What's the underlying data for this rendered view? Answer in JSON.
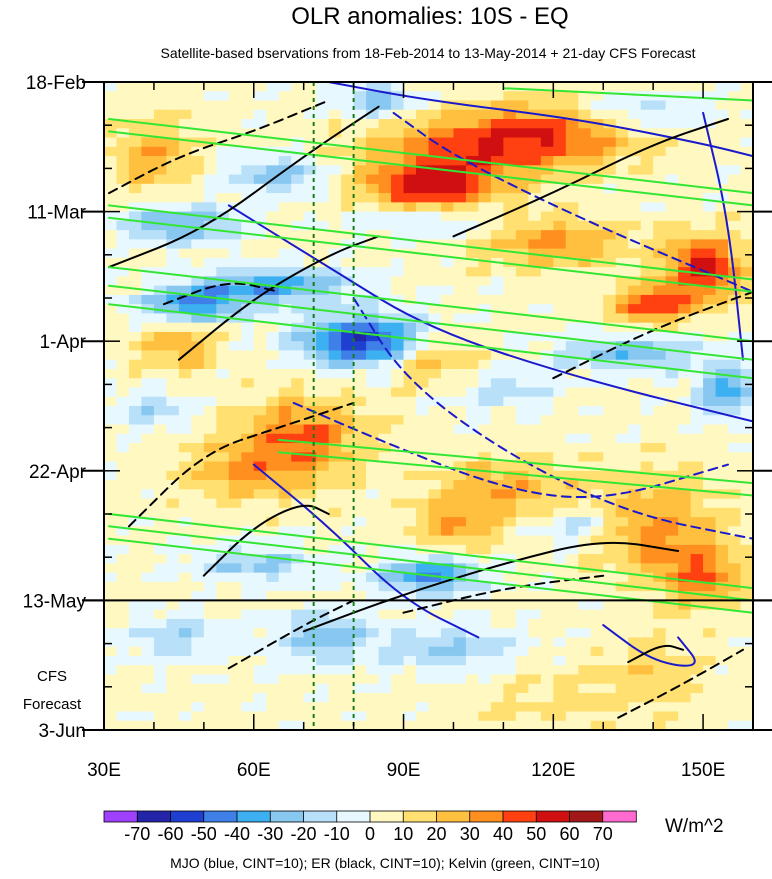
{
  "chart_data": {
    "type": "heatmap",
    "title": "OLR anomalies: 10S - EQ",
    "subtitle": "Satellite-based bservations from 18-Feb-2014 to 13-May-2014 + 21-day CFS Forecast",
    "x_axis": {
      "range": [
        30,
        160
      ],
      "ticks": [
        30,
        60,
        90,
        120,
        150
      ],
      "tick_labels": [
        "30E",
        "60E",
        "90E",
        "120E",
        "150E"
      ],
      "minor_step": 10
    },
    "y_axis": {
      "range_days": [
        0,
        105
      ],
      "direction": "time increases downward",
      "ticks_days": [
        0,
        21,
        42,
        63,
        84,
        105
      ],
      "tick_labels": [
        "18-Feb",
        "11-Mar",
        "1-Apr",
        "22-Apr",
        "13-May",
        "3-Jun"
      ],
      "minor_step_days": 7
    },
    "forecast_boundary": {
      "day": 84,
      "label": "13-May"
    },
    "forecast_label": [
      "CFS",
      "Forecast"
    ],
    "reference_lines_lon": [
      72,
      80
    ],
    "colorbar": {
      "unit": "W/m^2",
      "levels": [
        -70,
        -60,
        -50,
        -40,
        -30,
        -20,
        -10,
        0,
        10,
        20,
        30,
        40,
        50,
        60,
        70
      ],
      "tick_labels": [
        "-70",
        "-60",
        "-50",
        "-40",
        "-30",
        "-20",
        "-10",
        "0",
        "10",
        "20",
        "30",
        "40",
        "50",
        "60",
        "70"
      ],
      "colors": [
        "#a040ff",
        "#2424a8",
        "#1e3fd0",
        "#3f7fe8",
        "#3cb0f0",
        "#88c8f0",
        "#b8e0f8",
        "#e8f8ff",
        "#fff8c0",
        "#ffe070",
        "#ffc040",
        "#ff9020",
        "#ff4010",
        "#d01010",
        "#a01818",
        "#ff6ad0"
      ]
    },
    "field": {
      "background": 3,
      "features": [
        {
          "lon": 100,
          "day": 12,
          "rx": 20,
          "ry": 6,
          "v": 35
        },
        {
          "lon": 120,
          "day": 8,
          "rx": 18,
          "ry": 5,
          "v": 40
        },
        {
          "lon": 95,
          "day": 18,
          "rx": 12,
          "ry": 4,
          "v": 45
        },
        {
          "lon": 120,
          "day": 26,
          "rx": 15,
          "ry": 4,
          "v": 30
        },
        {
          "lon": 150,
          "day": 30,
          "rx": 8,
          "ry": 5,
          "v": 50
        },
        {
          "lon": 140,
          "day": 36,
          "rx": 8,
          "ry": 3,
          "v": 45
        },
        {
          "lon": 40,
          "day": 12,
          "rx": 8,
          "ry": 6,
          "v": 25
        },
        {
          "lon": 70,
          "day": 57,
          "rx": 12,
          "ry": 6,
          "v": 35
        },
        {
          "lon": 45,
          "day": 43,
          "rx": 8,
          "ry": 4,
          "v": 25
        },
        {
          "lon": 95,
          "day": 45,
          "rx": 10,
          "ry": 4,
          "v": 25
        },
        {
          "lon": 60,
          "day": 63,
          "rx": 14,
          "ry": 5,
          "v": 25
        },
        {
          "lon": 110,
          "day": 66,
          "rx": 14,
          "ry": 5,
          "v": 25
        },
        {
          "lon": 140,
          "day": 72,
          "rx": 12,
          "ry": 8,
          "v": 30
        },
        {
          "lon": 150,
          "day": 80,
          "rx": 8,
          "ry": 5,
          "v": 35
        },
        {
          "lon": 100,
          "day": 72,
          "rx": 8,
          "ry": 4,
          "v": 25
        },
        {
          "lon": 65,
          "day": 15,
          "rx": 10,
          "ry": 3,
          "v": -30
        },
        {
          "lon": 85,
          "day": 3,
          "rx": 8,
          "ry": 3,
          "v": -30
        },
        {
          "lon": 135,
          "day": 5,
          "rx": 15,
          "ry": 3,
          "v": -25
        },
        {
          "lon": 45,
          "day": 23,
          "rx": 12,
          "ry": 3,
          "v": -35
        },
        {
          "lon": 95,
          "day": 22,
          "rx": 15,
          "ry": 3,
          "v": -25
        },
        {
          "lon": 65,
          "day": 33,
          "rx": 15,
          "ry": 3,
          "v": -40
        },
        {
          "lon": 48,
          "day": 36,
          "rx": 10,
          "ry": 3,
          "v": -45
        },
        {
          "lon": 82,
          "day": 42,
          "rx": 12,
          "ry": 4,
          "v": -65
        },
        {
          "lon": 135,
          "day": 44,
          "rx": 15,
          "ry": 3,
          "v": -30
        },
        {
          "lon": 155,
          "day": 50,
          "rx": 6,
          "ry": 4,
          "v": -40
        },
        {
          "lon": 110,
          "day": 50,
          "rx": 10,
          "ry": 3,
          "v": -20
        },
        {
          "lon": 40,
          "day": 53,
          "rx": 8,
          "ry": 3,
          "v": -20
        },
        {
          "lon": 95,
          "day": 80,
          "rx": 10,
          "ry": 3,
          "v": -45
        },
        {
          "lon": 60,
          "day": 78,
          "rx": 12,
          "ry": 3,
          "v": -25
        },
        {
          "lon": 75,
          "day": 90,
          "rx": 10,
          "ry": 4,
          "v": -30
        },
        {
          "lon": 100,
          "day": 92,
          "rx": 12,
          "ry": 4,
          "v": -25
        },
        {
          "lon": 125,
          "day": 72,
          "rx": 8,
          "ry": 3,
          "v": -20
        },
        {
          "lon": 45,
          "day": 90,
          "rx": 10,
          "ry": 4,
          "v": -20
        },
        {
          "lon": 140,
          "day": 95,
          "rx": 10,
          "ry": 6,
          "v": 12
        },
        {
          "lon": 120,
          "day": 100,
          "rx": 20,
          "ry": 5,
          "v": 10
        }
      ]
    },
    "contour_legend": "MJO (blue, CINT=10); ER (black, CINT=10); Kelvin (green, CINT=10)",
    "contour_series": [
      {
        "name": "MJO",
        "color": "#1a1acc",
        "paths": [
          {
            "dashed": false,
            "points": [
              [
                75,
                0
              ],
              [
                95,
                3
              ],
              [
                125,
                6
              ],
              [
                150,
                10
              ],
              [
                160,
                12
              ]
            ]
          },
          {
            "dashed": false,
            "points": [
              [
                55,
                20
              ],
              [
                75,
                30
              ],
              [
                95,
                40
              ],
              [
                125,
                48
              ],
              [
                160,
                55
              ]
            ]
          },
          {
            "dashed": true,
            "points": [
              [
                88,
                5
              ],
              [
                100,
                12
              ],
              [
                125,
                22
              ],
              [
                160,
                34
              ]
            ]
          },
          {
            "dashed": true,
            "points": [
              [
                80,
                35
              ],
              [
                90,
                48
              ],
              [
                110,
                60
              ],
              [
                135,
                70
              ],
              [
                160,
                74
              ]
            ]
          },
          {
            "dashed": false,
            "points": [
              [
                60,
                62
              ],
              [
                75,
                72
              ],
              [
                90,
                84
              ],
              [
                105,
                90
              ]
            ]
          },
          {
            "dashed": true,
            "points": [
              [
                68,
                52
              ],
              [
                85,
                58
              ],
              [
                110,
                66
              ],
              [
                130,
                68
              ],
              [
                155,
                62
              ]
            ]
          },
          {
            "dashed": false,
            "points": [
              [
                130,
                88
              ],
              [
                140,
                94
              ],
              [
                150,
                95
              ],
              [
                145,
                90
              ]
            ]
          },
          {
            "dashed": false,
            "points": [
              [
                150,
                5
              ],
              [
                155,
                22
              ],
              [
                158,
                45
              ]
            ]
          }
        ]
      },
      {
        "name": "ER",
        "color": "#000000",
        "paths": [
          {
            "dashed": false,
            "points": [
              [
                31,
                30
              ],
              [
                50,
                24
              ],
              [
                70,
                12
              ],
              [
                85,
                4
              ]
            ]
          },
          {
            "dashed": false,
            "points": [
              [
                45,
                45
              ],
              [
                60,
                35
              ],
              [
                75,
                28
              ],
              [
                85,
                25
              ]
            ]
          },
          {
            "dashed": false,
            "points": [
              [
                50,
                80
              ],
              [
                60,
                72
              ],
              [
                70,
                68
              ],
              [
                75,
                70
              ]
            ]
          },
          {
            "dashed": false,
            "points": [
              [
                100,
                25
              ],
              [
                120,
                18
              ],
              [
                140,
                10
              ],
              [
                155,
                6
              ]
            ]
          },
          {
            "dashed": false,
            "points": [
              [
                70,
                89
              ],
              [
                90,
                83
              ],
              [
                110,
                78
              ],
              [
                130,
                74
              ],
              [
                145,
                76
              ]
            ]
          },
          {
            "dashed": false,
            "points": [
              [
                135,
                94
              ],
              [
                142,
                91
              ],
              [
                146,
                92
              ]
            ]
          },
          {
            "dashed": true,
            "points": [
              [
                31,
                18
              ],
              [
                45,
                12
              ],
              [
                60,
                8
              ],
              [
                75,
                3
              ]
            ]
          },
          {
            "dashed": true,
            "points": [
              [
                35,
                72
              ],
              [
                50,
                60
              ],
              [
                65,
                56
              ],
              [
                80,
                52
              ]
            ]
          },
          {
            "dashed": true,
            "points": [
              [
                55,
                95
              ],
              [
                70,
                88
              ],
              [
                80,
                84
              ]
            ]
          },
          {
            "dashed": true,
            "points": [
              [
                120,
                48
              ],
              [
                140,
                40
              ],
              [
                160,
                34
              ]
            ]
          },
          {
            "dashed": true,
            "points": [
              [
                90,
                86
              ],
              [
                110,
                82
              ],
              [
                130,
                80
              ]
            ]
          },
          {
            "dashed": true,
            "points": [
              [
                133,
                103
              ],
              [
                145,
                98
              ],
              [
                158,
                92
              ]
            ]
          },
          {
            "dashed": true,
            "points": [
              [
                42,
                36
              ],
              [
                55,
                32
              ],
              [
                65,
                34
              ]
            ]
          }
        ]
      },
      {
        "name": "Kelvin",
        "color": "#33e633",
        "paths": [
          {
            "dashed": false,
            "points": [
              [
                31,
                6
              ],
              [
                160,
                18
              ]
            ]
          },
          {
            "dashed": false,
            "points": [
              [
                31,
                8
              ],
              [
                160,
                20
              ]
            ]
          },
          {
            "dashed": false,
            "points": [
              [
                31,
                20
              ],
              [
                160,
                32
              ]
            ]
          },
          {
            "dashed": false,
            "points": [
              [
                31,
                22
              ],
              [
                160,
                34
              ]
            ]
          },
          {
            "dashed": false,
            "points": [
              [
                31,
                30
              ],
              [
                160,
                42
              ]
            ]
          },
          {
            "dashed": false,
            "points": [
              [
                31,
                33
              ],
              [
                160,
                45
              ]
            ]
          },
          {
            "dashed": false,
            "points": [
              [
                31,
                36
              ],
              [
                160,
                48
              ]
            ]
          },
          {
            "dashed": false,
            "points": [
              [
                65,
                58
              ],
              [
                160,
                65
              ]
            ]
          },
          {
            "dashed": false,
            "points": [
              [
                65,
                60
              ],
              [
                160,
                67
              ]
            ]
          },
          {
            "dashed": false,
            "points": [
              [
                31,
                70
              ],
              [
                160,
                82
              ]
            ]
          },
          {
            "dashed": false,
            "points": [
              [
                31,
                72
              ],
              [
                160,
                84
              ]
            ]
          },
          {
            "dashed": false,
            "points": [
              [
                31,
                74
              ],
              [
                160,
                86
              ]
            ]
          },
          {
            "dashed": false,
            "points": [
              [
                110,
                1
              ],
              [
                160,
                3
              ]
            ]
          }
        ]
      }
    ]
  }
}
